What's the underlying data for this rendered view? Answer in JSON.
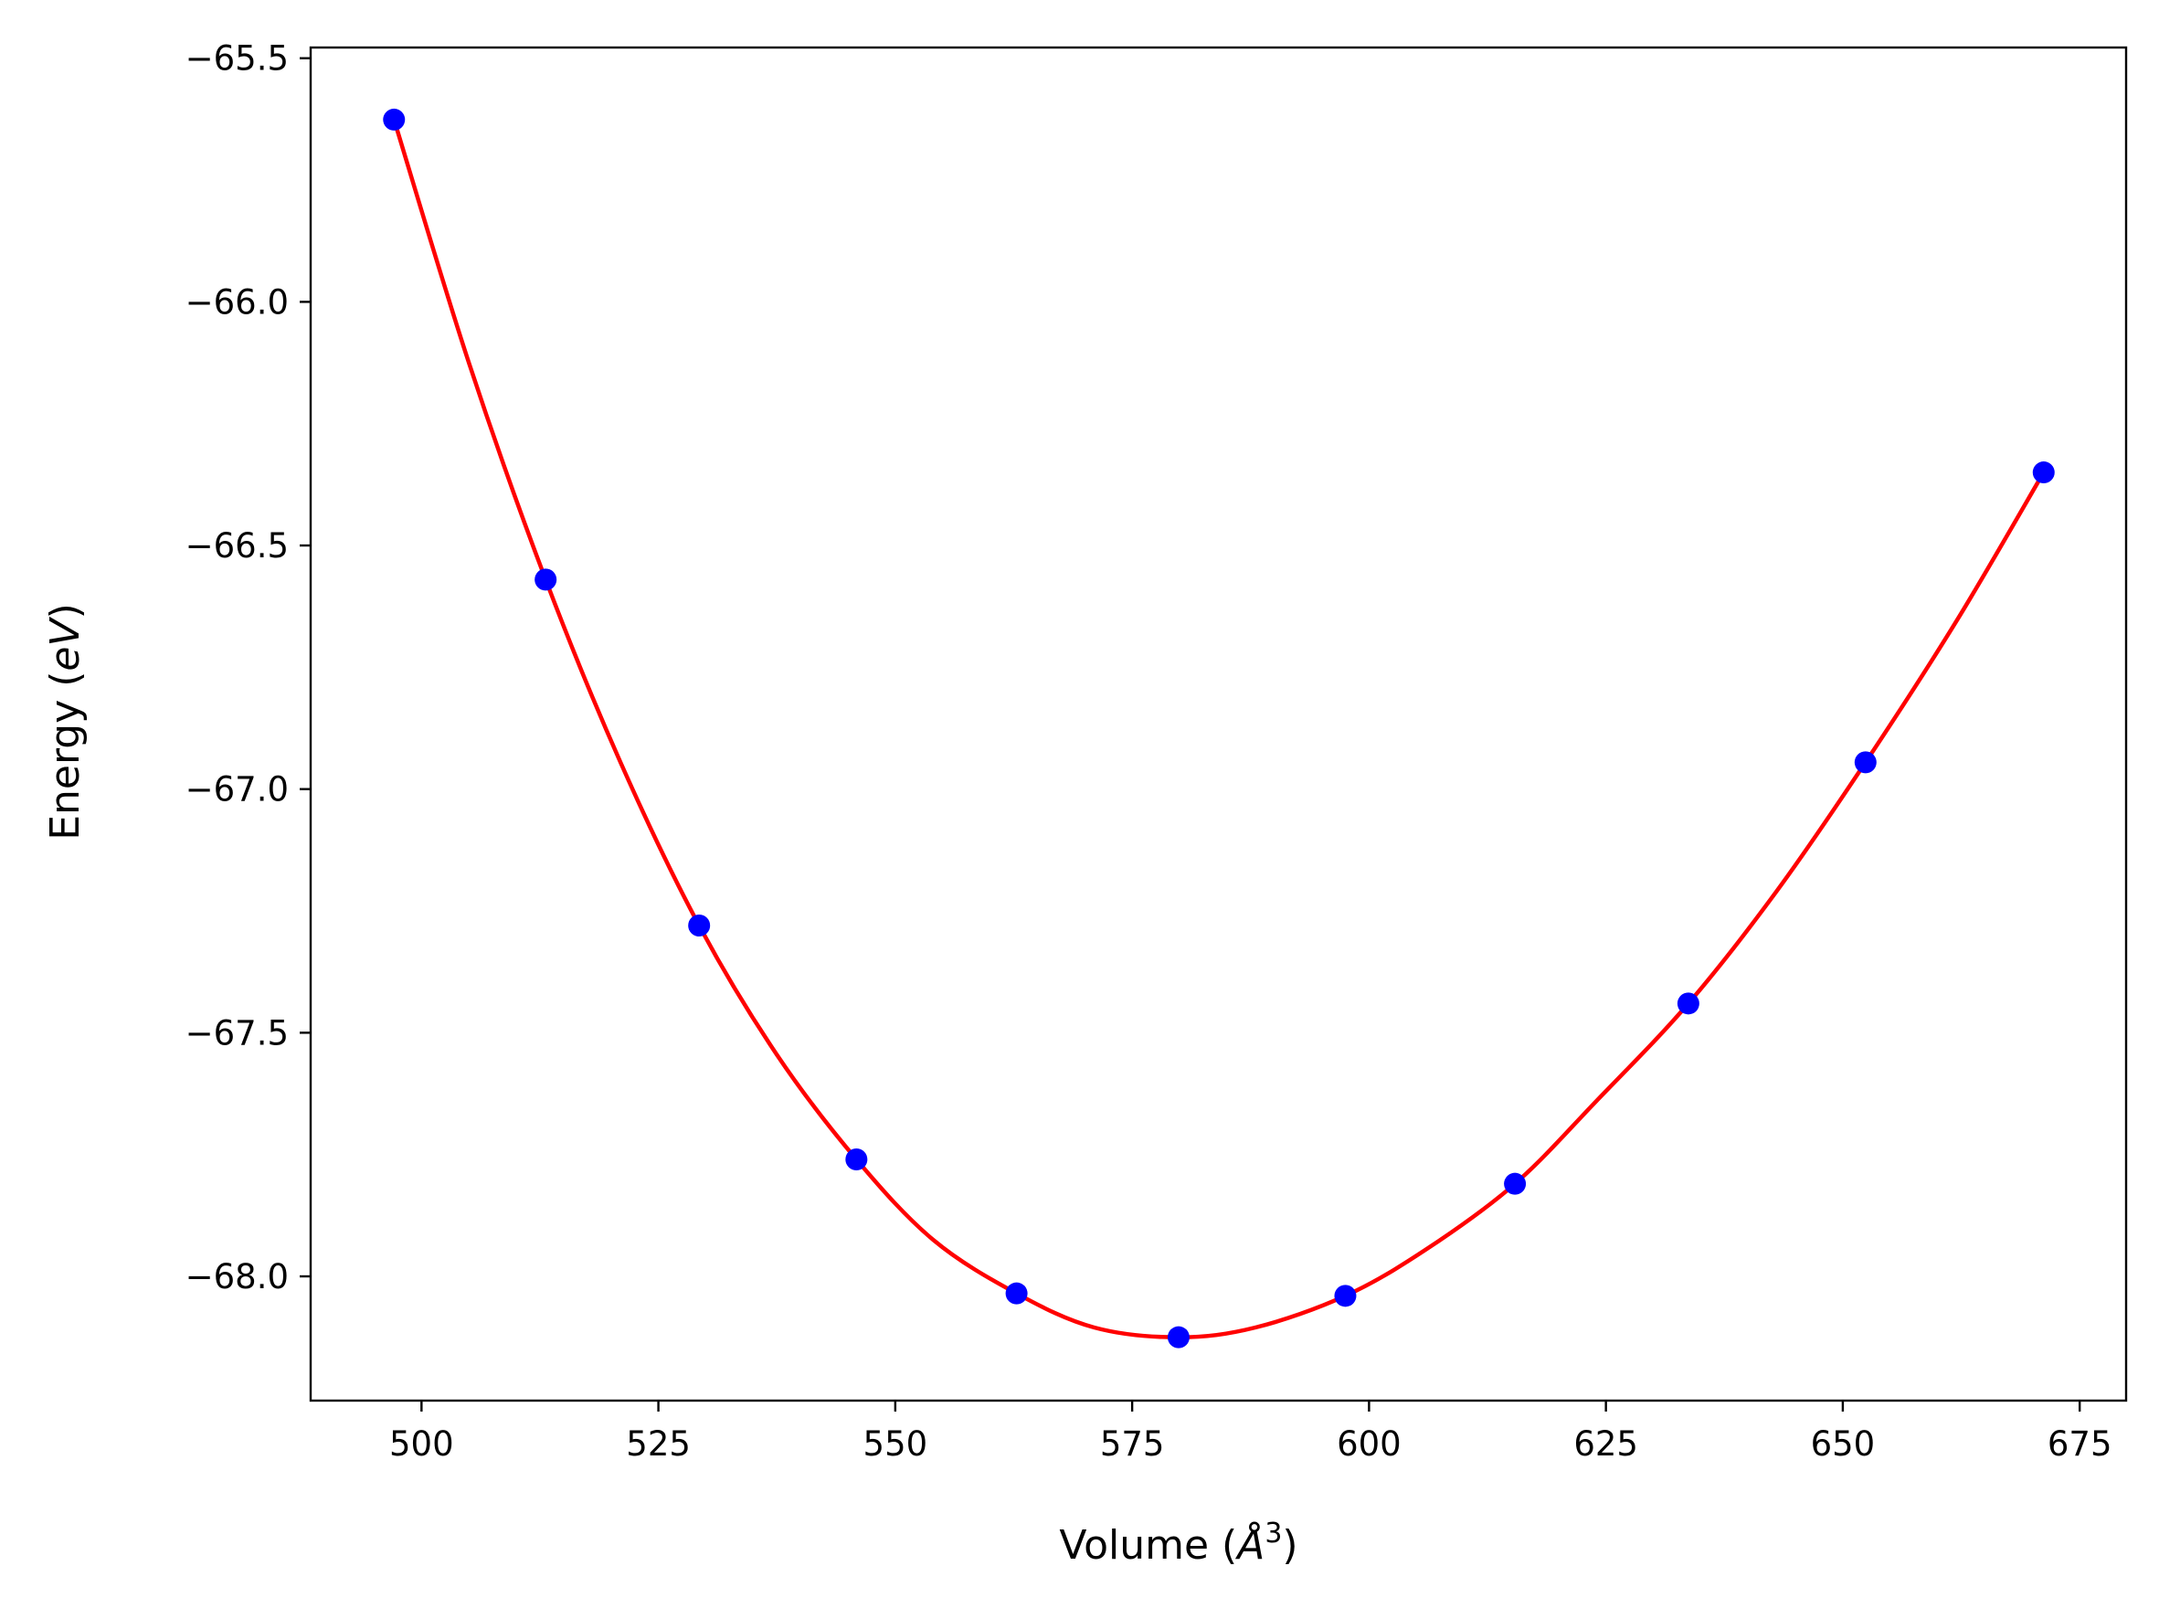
{
  "chart_data": {
    "type": "scatter",
    "title": "",
    "xlabel": "Volume (",
    "xlabel_unit": "Å",
    "xlabel_exp": "3",
    "xlabel_close": ")",
    "ylabel": "Energy (",
    "ylabel_unit": "eV",
    "ylabel_close": ")",
    "xlim": [
      488.3,
      679.9
    ],
    "ylim": [
      -68.255,
      -65.478
    ],
    "xticks": [
      500,
      525,
      550,
      575,
      600,
      625,
      650,
      675
    ],
    "xtick_labels": [
      "500",
      "525",
      "550",
      "575",
      "600",
      "625",
      "650",
      "675"
    ],
    "yticks": [
      -65.5,
      -66.0,
      -66.5,
      -67.0,
      -67.5,
      -68.0
    ],
    "ytick_labels": [
      "−65.5",
      "−66.0",
      "−66.5",
      "−67.0",
      "−67.5",
      "−68.0"
    ],
    "grid": false,
    "colors": {
      "points": "#0000ff",
      "fit": "#ff0000"
    },
    "series": [
      {
        "kind": "points",
        "x": [
          497.1,
          513.1,
          529.3,
          545.9,
          562.8,
          579.9,
          597.5,
          615.4,
          633.7,
          652.4,
          671.2
        ],
        "y": [
          -65.626,
          -66.57,
          -67.28,
          -67.76,
          -68.035,
          -68.125,
          -68.04,
          -67.81,
          -67.44,
          -66.945,
          -66.35
        ]
      },
      {
        "kind": "fit-curve",
        "x": [
          497.1,
          505.0,
          513.1,
          521.0,
          529.3,
          537.5,
          545.9,
          554.0,
          562.8,
          571.0,
          579.9,
          588.0,
          597.5,
          606.0,
          615.4,
          624.0,
          633.7,
          643.0,
          652.4,
          662.0,
          671.2
        ],
        "y": [
          -65.626,
          -66.125,
          -66.57,
          -66.945,
          -67.28,
          -67.545,
          -67.76,
          -67.925,
          -68.035,
          -68.105,
          -68.125,
          -68.105,
          -68.04,
          -67.945,
          -67.81,
          -67.64,
          -67.44,
          -67.21,
          -66.945,
          -66.655,
          -66.35
        ]
      }
    ]
  }
}
